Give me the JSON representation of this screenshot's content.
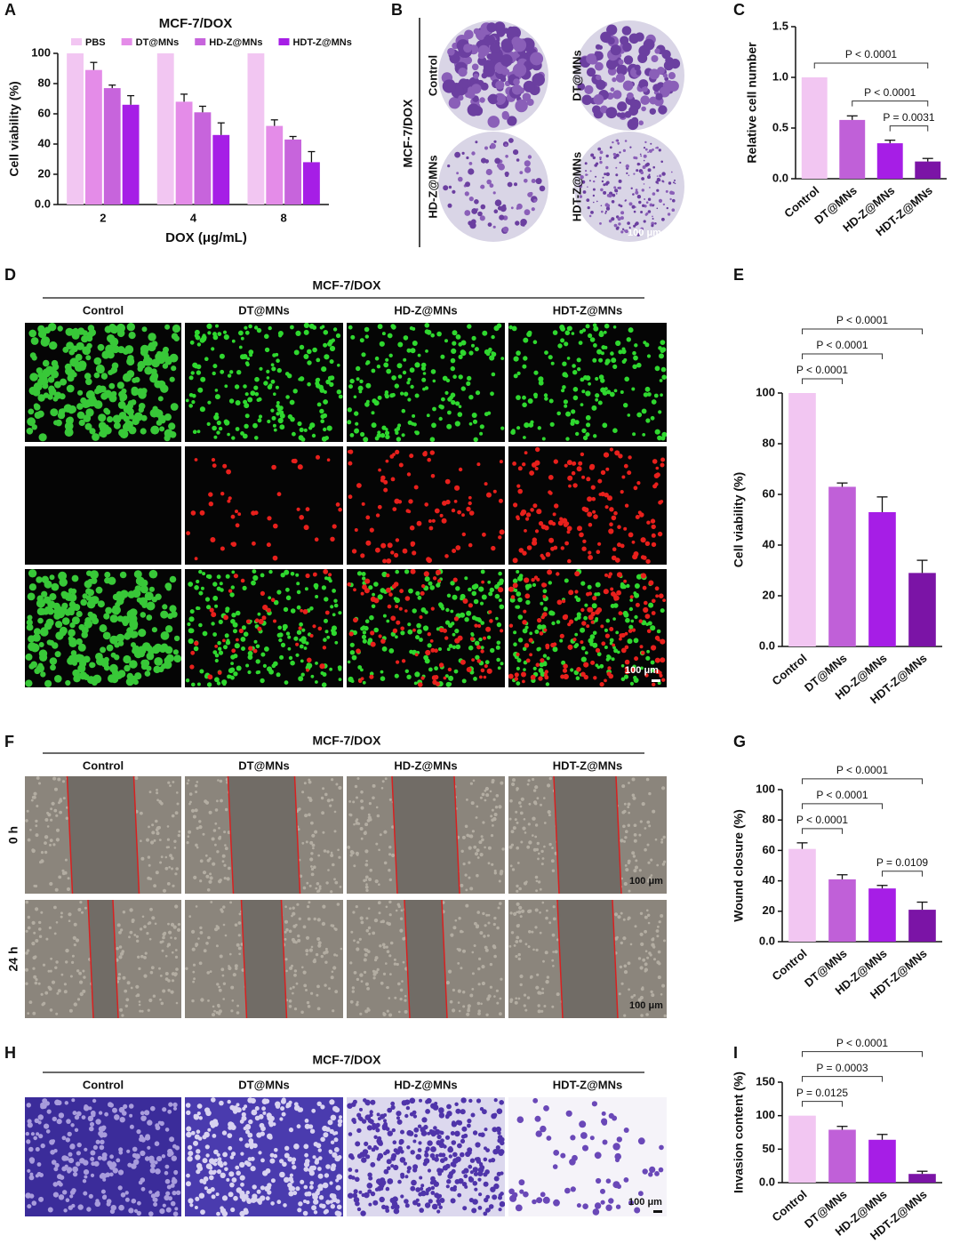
{
  "chart_data": [
    {
      "type": "bar",
      "panel": "A",
      "title": "MCF-7/DOX",
      "x_label": "DOX (μg/mL)",
      "y_label": "Cell viability (%)",
      "categories": [
        "2",
        "4",
        "8"
      ],
      "series": [
        {
          "name": "PBS",
          "color": "#f2c6f2",
          "values": [
            100,
            100,
            100
          ],
          "errors": [
            0,
            0,
            0
          ]
        },
        {
          "name": "DT@MNs",
          "color": "#e48ce8",
          "values": [
            89,
            68,
            52
          ],
          "errors": [
            5,
            5,
            4
          ]
        },
        {
          "name": "HD-Z@MNs",
          "color": "#c764dc",
          "values": [
            77,
            61,
            43
          ],
          "errors": [
            2,
            4,
            2
          ]
        },
        {
          "name": "HDT-Z@MNs",
          "color": "#a61ee6",
          "values": [
            66,
            46,
            28
          ],
          "errors": [
            6,
            8,
            7
          ]
        }
      ],
      "ylim": [
        0,
        100
      ],
      "yticks": [
        {
          "value": 0,
          "label": "0.0"
        },
        20,
        40,
        60,
        80,
        100
      ]
    },
    {
      "type": "bar",
      "panel": "C",
      "y_label": "Relative cell number",
      "categories": [
        "Control",
        "DT@MNs",
        "HD-Z@MNs",
        "HDT-Z@MNs"
      ],
      "values": [
        1.0,
        0.58,
        0.35,
        0.17
      ],
      "errors": [
        0,
        0.04,
        0.03,
        0.03
      ],
      "colors": [
        "#f2c6f2",
        "#c060d8",
        "#a61ee6",
        "#7b14a6"
      ],
      "ylim": [
        0,
        1.5
      ],
      "yticks": [
        {
          "value": 0,
          "label": "0.0"
        },
        0.5,
        {
          "value": 1,
          "label": "1.0"
        },
        1.5
      ],
      "significance": [
        {
          "from": 2,
          "to": 3,
          "label": "P = 0.0031"
        },
        {
          "from": 1,
          "to": 3,
          "label": "P < 0.0001"
        },
        {
          "from": 0,
          "to": 3,
          "label": "P < 0.0001"
        }
      ]
    },
    {
      "type": "bar",
      "panel": "E",
      "y_label": "Cell viability (%)",
      "categories": [
        "Control",
        "DT@MNs",
        "HD-Z@MNs",
        "HDT-Z@MNs"
      ],
      "values": [
        100,
        63,
        53,
        29
      ],
      "errors": [
        0,
        1.5,
        6,
        5
      ],
      "colors": [
        "#f2c6f2",
        "#c060d8",
        "#a61ee6",
        "#7b14a6"
      ],
      "ylim": [
        0,
        100
      ],
      "yticks": [
        {
          "value": 0,
          "label": "0.0"
        },
        20,
        40,
        60,
        80,
        100
      ],
      "significance": [
        {
          "from": 0,
          "to": 1,
          "label": "P < 0.0001"
        },
        {
          "from": 0,
          "to": 2,
          "label": "P < 0.0001"
        },
        {
          "from": 0,
          "to": 3,
          "label": "P < 0.0001"
        }
      ]
    },
    {
      "type": "bar",
      "panel": "G",
      "y_label": "Wound closure (%)",
      "categories": [
        "Control",
        "DT@MNs",
        "HD-Z@MNs",
        "HDT-Z@MNs"
      ],
      "values": [
        61,
        41,
        35,
        21
      ],
      "errors": [
        4,
        3,
        2,
        5
      ],
      "colors": [
        "#f2c6f2",
        "#c060d8",
        "#a61ee6",
        "#7b14a6"
      ],
      "ylim": [
        0,
        100
      ],
      "yticks": [
        {
          "value": 0,
          "label": "0.0"
        },
        20,
        40,
        60,
        80,
        100
      ],
      "significance": [
        {
          "from": 2,
          "to": 3,
          "label": "P = 0.0109"
        },
        {
          "from": 0,
          "to": 1,
          "label": "P < 0.0001"
        },
        {
          "from": 0,
          "to": 2,
          "label": "P < 0.0001"
        },
        {
          "from": 0,
          "to": 3,
          "label": "P < 0.0001"
        }
      ]
    },
    {
      "type": "bar",
      "panel": "I",
      "y_label": "Invasion content (%)",
      "categories": [
        "Control",
        "DT@MNs",
        "HD-Z@MNs",
        "HDT-Z@MNs"
      ],
      "values": [
        100,
        79,
        64,
        13
      ],
      "errors": [
        0,
        5,
        8,
        4
      ],
      "colors": [
        "#f2c6f2",
        "#c060d8",
        "#a61ee6",
        "#7b14a6"
      ],
      "ylim": [
        0,
        150
      ],
      "yticks": [
        {
          "value": 0,
          "label": "0.0"
        },
        50,
        100,
        150
      ],
      "significance": [
        {
          "from": 0,
          "to": 1,
          "label": "P = 0.0125"
        },
        {
          "from": 0,
          "to": 2,
          "label": "P = 0.0003"
        },
        {
          "from": 0,
          "to": 3,
          "label": "P < 0.0001"
        }
      ]
    }
  ],
  "image_panels": [
    {
      "panel": "B",
      "label": "MCF-7/DOX",
      "images": [
        "Control",
        "DT@MNs",
        "HD-Z@MNs",
        "HDT-Z@MNs"
      ],
      "scale_bar": "100 μm"
    },
    {
      "panel": "D",
      "title": "MCF-7/DOX",
      "columns": [
        "Control",
        "DT@MNs",
        "HD-Z@MNs",
        "HDT-Z@MNs"
      ],
      "scale_bar": "100 μm"
    },
    {
      "panel": "F",
      "title": "MCF-7/DOX",
      "columns": [
        "Control",
        "DT@MNs",
        "HD-Z@MNs",
        "HDT-Z@MNs"
      ],
      "rows": [
        "0 h",
        "24 h"
      ],
      "scale_bar": "100 μm"
    },
    {
      "panel": "H",
      "title": "MCF-7/DOX",
      "columns": [
        "Control",
        "DT@MNs",
        "HD-Z@MNs",
        "HDT-Z@MNs"
      ],
      "scale_bar": "100 μm"
    }
  ]
}
